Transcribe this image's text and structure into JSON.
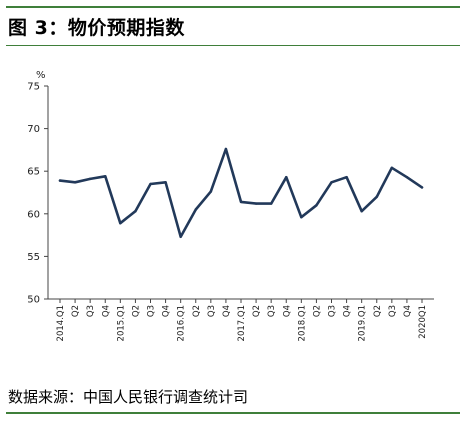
{
  "header": {
    "figure_title": "图 3：物价预期指数"
  },
  "footer": {
    "source": "数据来源：中国人民银行调查统计司"
  },
  "chart_data": {
    "type": "line",
    "title": "",
    "xlabel": "",
    "ylabel": "%",
    "ylim": [
      50,
      75
    ],
    "yticks": [
      50,
      55,
      60,
      65,
      70,
      75
    ],
    "grid": false,
    "x": [
      "2014.Q1",
      "Q2",
      "Q3",
      "Q4",
      "2015.Q1",
      "Q2",
      "Q3",
      "Q4",
      "2016.Q1",
      "Q2",
      "Q3",
      "Q4",
      "2017.Q1",
      "Q2",
      "Q3",
      "Q4",
      "2018.Q1",
      "Q2",
      "Q3",
      "Q4",
      "2019.Q1",
      "Q2",
      "Q3",
      "Q4",
      "2020Q1"
    ],
    "series": [
      {
        "name": "",
        "color": "#22395a",
        "values": [
          63.9,
          63.7,
          64.1,
          64.4,
          58.9,
          60.3,
          63.5,
          63.7,
          57.3,
          60.5,
          62.6,
          67.6,
          61.4,
          61.2,
          61.2,
          64.3,
          59.6,
          61.0,
          63.7,
          64.3,
          60.3,
          62.0,
          65.4,
          64.3,
          63.1
        ]
      }
    ]
  }
}
